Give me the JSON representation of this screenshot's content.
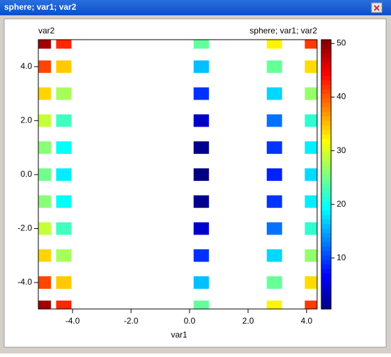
{
  "window_title": "sphere; var1; var2",
  "chart_data": {
    "type": "scatter",
    "title": "sphere; var1; var2",
    "y_label": "var2",
    "x_label": "var1",
    "x": [
      -5.0,
      -5.0,
      -5.0,
      -5.0,
      -5.0,
      -5.0,
      -5.0,
      -5.0,
      -5.0,
      -5.0,
      -5.0,
      -4.3,
      -4.3,
      -4.3,
      -4.3,
      -4.3,
      -4.3,
      -4.3,
      -4.3,
      -4.3,
      -4.3,
      -4.3,
      0.4,
      0.4,
      0.4,
      0.4,
      0.4,
      0.4,
      0.4,
      0.4,
      0.4,
      0.4,
      0.4,
      2.9,
      2.9,
      2.9,
      2.9,
      2.9,
      2.9,
      2.9,
      2.9,
      2.9,
      2.9,
      2.9,
      4.2,
      4.2,
      4.2,
      4.2,
      4.2,
      4.2,
      4.2,
      4.2,
      4.2,
      4.2,
      4.2
    ],
    "y": [
      4.9,
      4.0,
      3.0,
      2.0,
      1.0,
      0.0,
      -1.0,
      -2.0,
      -3.0,
      -4.0,
      -4.9,
      4.9,
      4.0,
      3.0,
      2.0,
      1.0,
      0.0,
      -1.0,
      -2.0,
      -3.0,
      -4.0,
      -4.9,
      4.9,
      4.0,
      3.0,
      2.0,
      1.0,
      0.0,
      -1.0,
      -2.0,
      -3.0,
      -4.0,
      -4.9,
      4.9,
      4.0,
      3.0,
      2.0,
      1.0,
      0.0,
      -1.0,
      -2.0,
      -3.0,
      -4.0,
      -4.9,
      4.9,
      4.0,
      3.0,
      2.0,
      1.0,
      0.0,
      -1.0,
      -2.0,
      -3.0,
      -4.0,
      -4.9
    ],
    "values": [
      49.0,
      41.0,
      34.0,
      29.0,
      26.0,
      25.0,
      26.0,
      29.0,
      34.0,
      41.0,
      49.0,
      42.5,
      34.5,
      27.5,
      22.5,
      19.5,
      18.5,
      19.5,
      22.5,
      27.5,
      34.5,
      42.5,
      24.2,
      16.2,
      9.2,
      4.2,
      1.2,
      0.2,
      1.2,
      4.2,
      9.2,
      16.2,
      24.2,
      32.4,
      24.4,
      17.4,
      12.4,
      9.4,
      8.4,
      9.4,
      12.4,
      17.4,
      24.4,
      32.4,
      41.6,
      33.6,
      26.6,
      21.6,
      18.6,
      17.6,
      18.6,
      21.6,
      26.6,
      33.6,
      41.6
    ],
    "xlim": [
      -5.17,
      4.36
    ],
    "ylim": [
      -4.98,
      5.0
    ],
    "xticks": [
      {
        "value": -4,
        "label": "-4.0"
      },
      {
        "value": -2,
        "label": "-2.0"
      },
      {
        "value": 0,
        "label": "0.0"
      },
      {
        "value": 2,
        "label": "2.0"
      },
      {
        "value": 4,
        "label": "4.0"
      }
    ],
    "yticks": [
      {
        "value": -4,
        "label": "-4.0"
      },
      {
        "value": -2,
        "label": "-2.0"
      },
      {
        "value": 0,
        "label": "0.0"
      },
      {
        "value": 2,
        "label": "2.0"
      },
      {
        "value": 4,
        "label": "4.0"
      }
    ],
    "colormap": "jet",
    "clim": [
      0.5,
      50.7
    ],
    "cticks": [
      10,
      20,
      30,
      40,
      50
    ]
  }
}
